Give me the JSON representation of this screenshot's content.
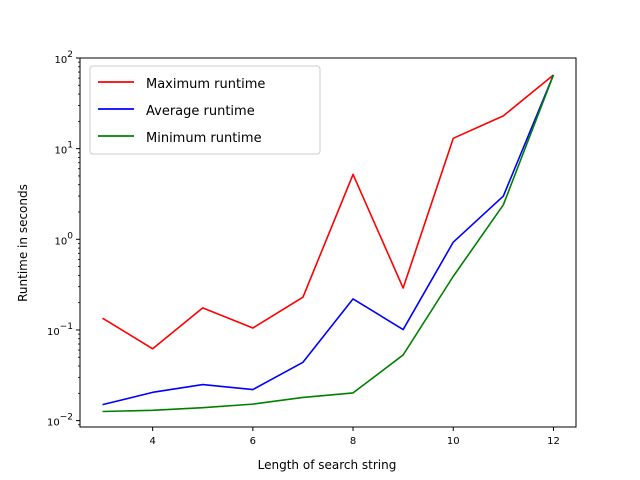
{
  "chart_data": {
    "type": "line",
    "xlabel": "Length of search string",
    "ylabel": "Runtime in seconds",
    "x": [
      3,
      4,
      5,
      6,
      7,
      8,
      9,
      10,
      11,
      12
    ],
    "xlim": [
      2.55,
      12.45
    ],
    "xticks": [
      {
        "value": 4,
        "label": "4"
      },
      {
        "value": 6,
        "label": "6"
      },
      {
        "value": 8,
        "label": "8"
      },
      {
        "value": 10,
        "label": "10"
      },
      {
        "value": 12,
        "label": "12"
      }
    ],
    "yscale": "log",
    "ylim": [
      0.0085,
      100
    ],
    "yticks": [
      {
        "value": 0.01,
        "base": "10",
        "exp": "−2"
      },
      {
        "value": 0.1,
        "base": "10",
        "exp": "−1"
      },
      {
        "value": 1,
        "base": "10",
        "exp": "0"
      },
      {
        "value": 10,
        "base": "10",
        "exp": "1"
      },
      {
        "value": 100,
        "base": "10",
        "exp": "2"
      }
    ],
    "grid": false,
    "legend_position": "top-left",
    "series": [
      {
        "name": "Maximum runtime",
        "color": "#ff0000",
        "values": [
          0.135,
          0.062,
          0.175,
          0.105,
          0.23,
          5.2,
          0.29,
          13.0,
          23.0,
          65.0
        ]
      },
      {
        "name": "Average runtime",
        "color": "#0000ff",
        "values": [
          0.015,
          0.0205,
          0.025,
          0.022,
          0.044,
          0.22,
          0.101,
          0.93,
          3.0,
          65.0
        ]
      },
      {
        "name": "Minimum runtime",
        "color": "#008000",
        "values": [
          0.0126,
          0.013,
          0.0139,
          0.0152,
          0.018,
          0.0202,
          0.053,
          0.39,
          2.4,
          65.0
        ]
      }
    ]
  }
}
